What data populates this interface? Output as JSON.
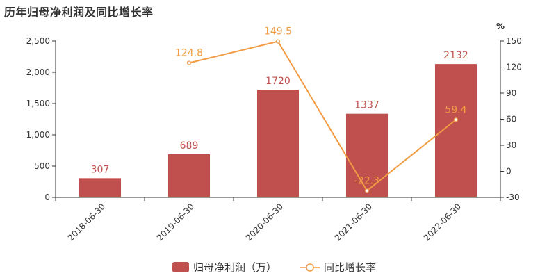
{
  "chart_data": {
    "type": "bar",
    "title": "历年归母净利润及同比增长率",
    "categories": [
      "2018-06-30",
      "2019-06-30",
      "2020-06-30",
      "2021-06-30",
      "2022-06-30"
    ],
    "series": [
      {
        "name": "归母净利润（万）",
        "type": "bar",
        "axis": "left",
        "color": "#c0504d",
        "values": [
          307,
          689,
          1720,
          1337,
          2132
        ],
        "labels": [
          "307",
          "689",
          "1720",
          "1337",
          "2132"
        ]
      },
      {
        "name": "同比增长率",
        "type": "line",
        "axis": "right",
        "color": "#f19b43",
        "values": [
          null,
          124.8,
          149.5,
          -22.3,
          59.4
        ],
        "labels": [
          "",
          "124.8",
          "149.5",
          "-22.3",
          "59.4"
        ]
      }
    ],
    "y_left": {
      "min": 0,
      "max": 2500,
      "ticks": [
        0,
        500,
        1000,
        1500,
        2000,
        2500
      ],
      "tick_labels": [
        "0",
        "500",
        "1,000",
        "1,500",
        "2,000",
        "2,500"
      ]
    },
    "y_right": {
      "min": -30,
      "max": 150,
      "unit": "%",
      "ticks": [
        -30,
        0,
        30,
        60,
        90,
        120,
        150
      ],
      "tick_labels": [
        "-30",
        "0",
        "30",
        "60",
        "90",
        "120",
        "150"
      ]
    },
    "grid": false,
    "legend_position": "bottom-center"
  }
}
